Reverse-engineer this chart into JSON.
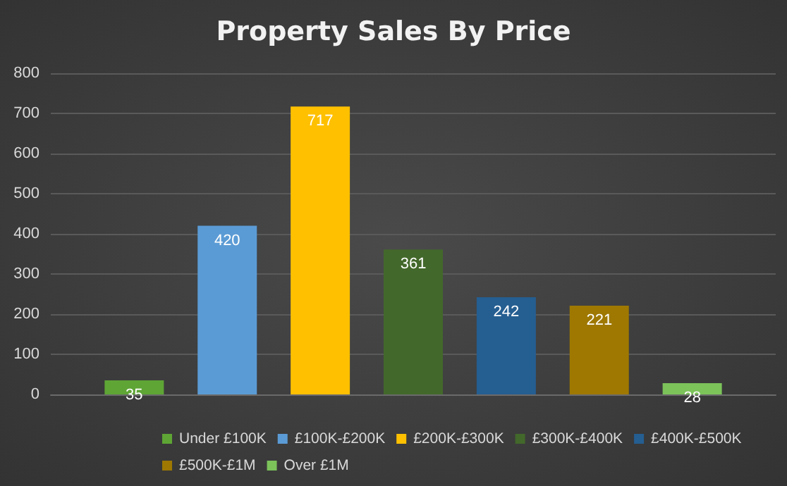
{
  "chart_data": {
    "type": "bar",
    "title": "Property Sales By Price",
    "categories": [
      null
    ],
    "series": [
      {
        "name": "Under £100K",
        "color": "#5ea535",
        "values": [
          35
        ]
      },
      {
        "name": "£100K-£200K",
        "color": "#5b9bd5",
        "values": [
          420
        ]
      },
      {
        "name": "£200K-£300K",
        "color": "#ffc000",
        "values": [
          717
        ]
      },
      {
        "name": "£300K-£400K",
        "color": "#43682b",
        "values": [
          361
        ]
      },
      {
        "name": "£400K-£500K",
        "color": "#255e91",
        "values": [
          242
        ]
      },
      {
        "name": "£500K-£1M",
        "color": "#9e7800",
        "values": [
          221
        ]
      },
      {
        "name": "Over £1M",
        "color": "#7cc35a",
        "values": [
          28
        ]
      }
    ],
    "ylim": [
      0,
      800
    ],
    "yticks": [
      0,
      100,
      200,
      300,
      400,
      500,
      600,
      700,
      800
    ],
    "grid": "y",
    "legend": "bottom",
    "data_labels": true
  }
}
